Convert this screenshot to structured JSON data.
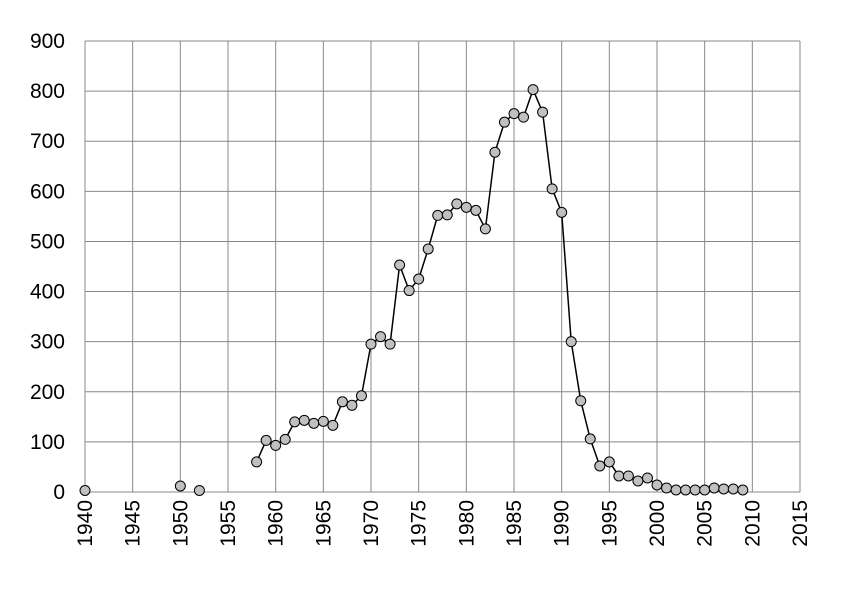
{
  "chart_data": {
    "type": "line",
    "x": [
      1940,
      1941,
      1942,
      1943,
      1944,
      1945,
      1946,
      1947,
      1948,
      1949,
      1950,
      1951,
      1952,
      1953,
      1954,
      1955,
      1956,
      1957,
      1958,
      1959,
      1960,
      1961,
      1962,
      1963,
      1964,
      1965,
      1966,
      1967,
      1968,
      1969,
      1970,
      1971,
      1972,
      1973,
      1974,
      1975,
      1976,
      1977,
      1978,
      1979,
      1980,
      1981,
      1982,
      1983,
      1984,
      1985,
      1986,
      1987,
      1988,
      1989,
      1990,
      1991,
      1992,
      1993,
      1994,
      1995,
      1996,
      1997,
      1998,
      1999,
      2000,
      2001,
      2002,
      2003,
      2004,
      2005,
      2006,
      2007,
      2008,
      2009
    ],
    "series": [
      {
        "color": "#c0c0c0",
        "values": [
          3,
          null,
          null,
          null,
          null,
          null,
          null,
          null,
          null,
          null,
          12,
          null,
          3,
          null,
          null,
          null,
          null,
          null,
          60,
          103,
          93,
          105,
          140,
          143,
          137,
          141,
          133,
          180,
          173,
          192,
          295,
          310,
          295,
          453,
          402,
          425,
          485,
          552,
          553,
          575,
          568,
          562,
          525,
          678,
          738,
          755,
          748,
          803,
          758,
          605,
          558,
          300,
          182,
          106,
          52,
          60,
          32,
          32,
          22,
          28,
          14,
          8,
          4,
          4,
          4,
          4,
          8,
          6,
          6,
          4
        ]
      }
    ],
    "xlim": [
      1940,
      2015
    ],
    "xticks": [
      1940,
      1945,
      1950,
      1955,
      1960,
      1965,
      1970,
      1975,
      1980,
      1985,
      1990,
      1995,
      2000,
      2005,
      2010,
      2015
    ],
    "ylim": [
      0,
      900
    ],
    "yticks": [
      0,
      100,
      200,
      300,
      400,
      500,
      600,
      700,
      800,
      900
    ],
    "grid": true
  }
}
